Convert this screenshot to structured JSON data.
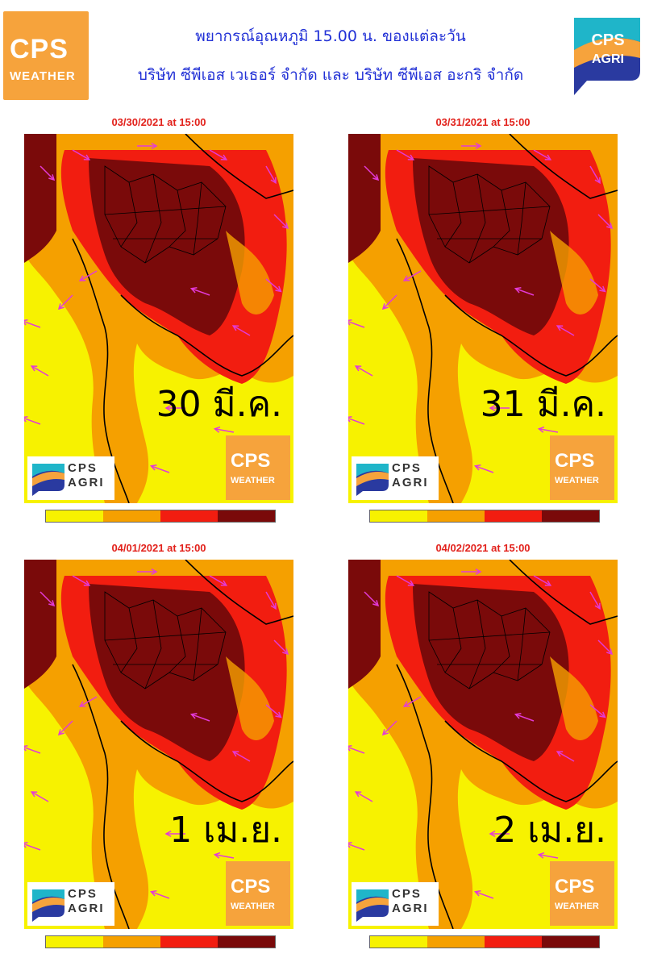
{
  "header": {
    "line1": "พยากรณ์อุณหภูมิ 15.00 น. ของแต่ละวัน",
    "line2": "บริษัท ซีพีเอส เวเธอร์ จำกัด และ บริษัท ซีพีเอส อะกริ จำกัด"
  },
  "logos": {
    "weather_main": "CPS",
    "weather_sub": "WEATHER",
    "agri_main": "CPS",
    "agri_sub": "AGRI"
  },
  "panels": [
    {
      "date": "03/30/2021 at 15:00",
      "label": "30 มี.ค."
    },
    {
      "date": "03/31/2021 at 15:00",
      "label": "31 มี.ค."
    },
    {
      "date": "04/01/2021 at 15:00",
      "label": "1 เม.ย."
    },
    {
      "date": "04/02/2021 at 15:00",
      "label": "2 เม.ย."
    }
  ],
  "legend_colors": [
    "#f7f200",
    "#f5a000",
    "#f21d10",
    "#7a0a0a"
  ],
  "colors": {
    "title": "#2231d6",
    "date": "#e2211b",
    "wind_arrow": "#e33ad8",
    "weather_brand": "#f6a33c"
  }
}
